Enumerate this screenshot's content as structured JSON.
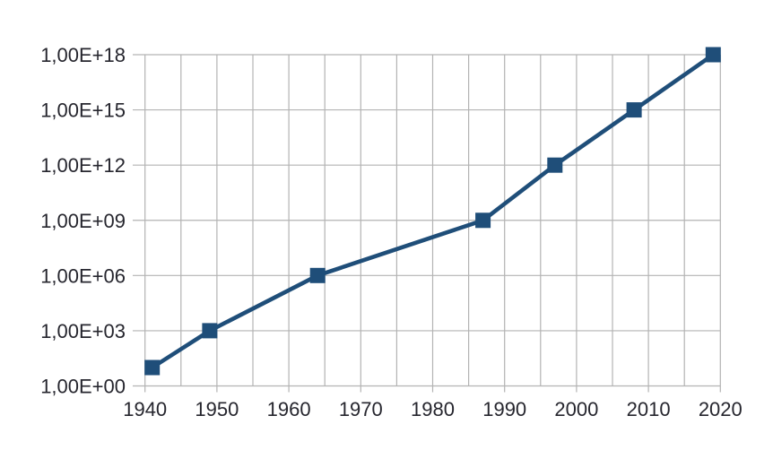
{
  "chart_data": {
    "type": "line",
    "title": "",
    "xlabel": "",
    "ylabel": "",
    "legend": "none",
    "grid": true,
    "x": [
      1941,
      1949,
      1964,
      1987,
      1997,
      2008,
      2019
    ],
    "values": [
      10.0,
      1000.0,
      1000000.0,
      1000000000.0,
      1000000000000.0,
      1000000000000000.0,
      1e+18
    ],
    "series": [
      {
        "name": "",
        "points": [
          {
            "x": 1941,
            "y": 10.0
          },
          {
            "x": 1949,
            "y": 1000.0
          },
          {
            "x": 1964,
            "y": 1000000.0
          },
          {
            "x": 1987,
            "y": 1000000000.0
          },
          {
            "x": 1997,
            "y": 1000000000000.0
          },
          {
            "x": 2008,
            "y": 1000000000000000.0
          },
          {
            "x": 2019,
            "y": 1e+18
          }
        ],
        "marker": "square"
      }
    ],
    "x_axis": {
      "min": 1940,
      "max": 2020,
      "tick_interval": 10,
      "grid_interval": 5,
      "tick_labels": [
        "1940",
        "1950",
        "1960",
        "1970",
        "1980",
        "1990",
        "2000",
        "2010",
        "2020"
      ]
    },
    "y_axis": {
      "scale": "log",
      "min": 1.0,
      "max": 1e+18,
      "tick_exponents": [
        0,
        3,
        6,
        9,
        12,
        15,
        18
      ],
      "tick_labels": [
        "1,00E+00",
        "1,00E+03",
        "1,00E+06",
        "1,00E+09",
        "1,00E+12",
        "1,00E+15",
        "1,00E+18"
      ]
    },
    "colors": {
      "series": "#1F4E79",
      "grid": "#b3b3b3",
      "axis": "#b3b3b3",
      "text": "#26262e",
      "background": "#ffffff"
    }
  }
}
